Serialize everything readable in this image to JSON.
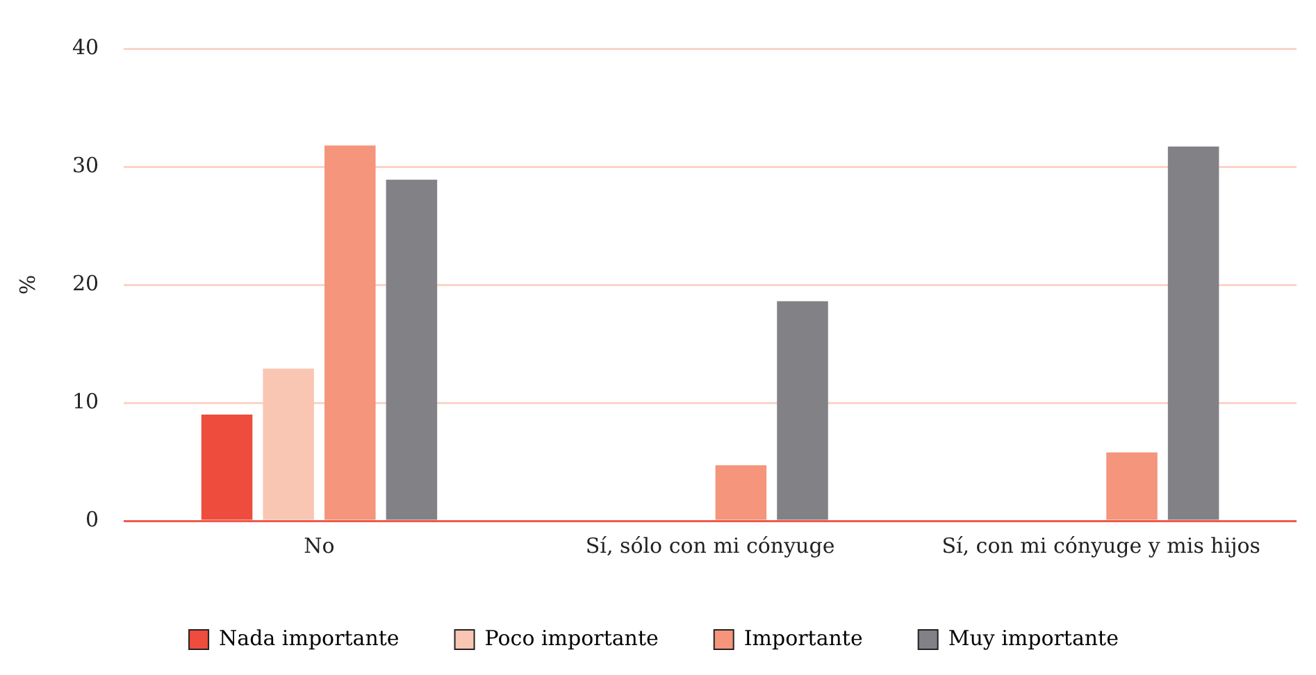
{
  "chart_data": {
    "type": "bar",
    "ylabel": "%",
    "categories": [
      "No",
      "Sí, sólo con mi cónyuge",
      "Sí, con mi cónyuge y mis hijos"
    ],
    "series": [
      {
        "name": "Nada importante",
        "color": "#ee4c3c",
        "values": [
          9.0,
          0,
          0
        ]
      },
      {
        "name": "Poco importante",
        "color": "#f9c6b3",
        "values": [
          12.9,
          0,
          0
        ]
      },
      {
        "name": "Importante",
        "color": "#f4957c",
        "values": [
          31.8,
          4.7,
          5.8
        ]
      },
      {
        "name": "Muy importante",
        "color": "#828286",
        "values": [
          28.9,
          18.6,
          31.7
        ]
      }
    ],
    "ylim": [
      0,
      40
    ],
    "yticks": [
      0,
      10,
      20,
      30,
      40
    ],
    "grid": "y",
    "legend": "bottom"
  }
}
